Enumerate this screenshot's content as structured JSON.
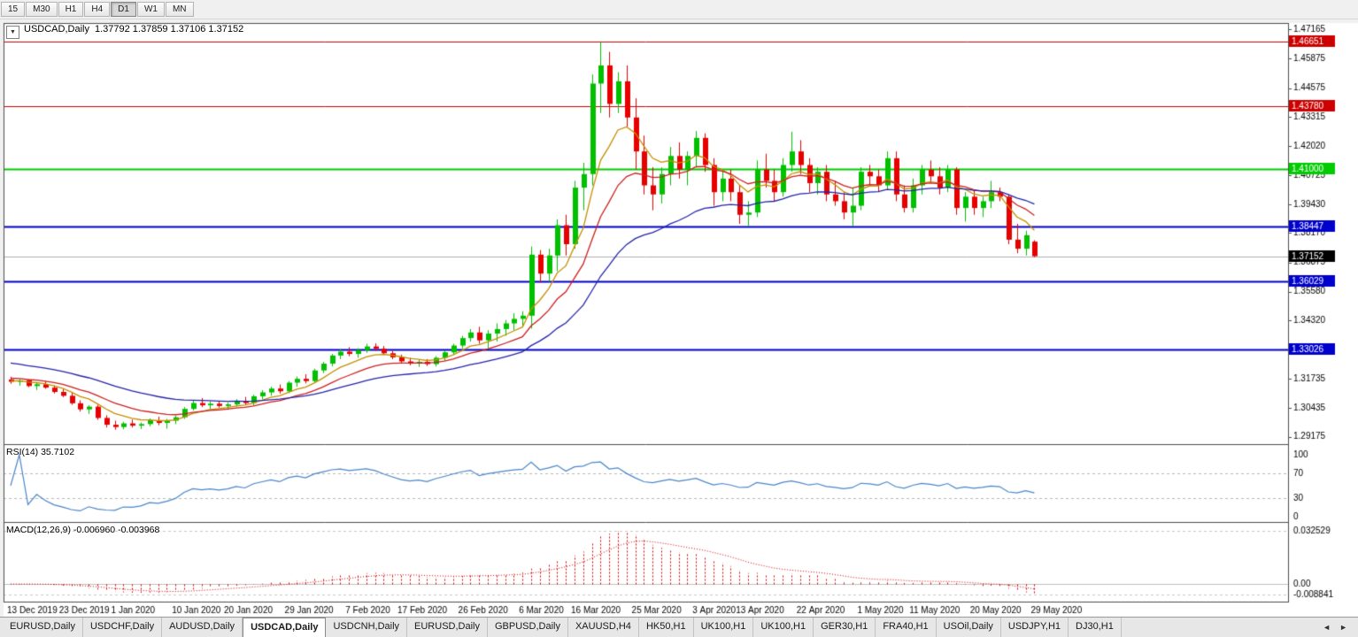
{
  "toolbar": {
    "timeframes": [
      {
        "label": "15",
        "active": false
      },
      {
        "label": "M30",
        "active": false
      },
      {
        "label": "H1",
        "active": false
      },
      {
        "label": "H4",
        "active": false
      },
      {
        "label": "D1",
        "active": true
      },
      {
        "label": "W1",
        "active": false
      },
      {
        "label": "MN",
        "active": false
      }
    ]
  },
  "chart": {
    "dropdown_icon": "▼",
    "title": "USDCAD,Daily",
    "ohlc": "1.37792 1.37859 1.37106 1.37152"
  },
  "panels": {
    "rsi_label": "RSI(14) 35.7102",
    "macd_label": "MACD(12,26,9) -0.006960 -0.003968"
  },
  "tabs": {
    "nav_left": "◄",
    "nav_right": "►",
    "items": [
      {
        "label": "EURUSD,Daily",
        "active": false
      },
      {
        "label": "USDCHF,Daily",
        "active": false
      },
      {
        "label": "AUDUSD,Daily",
        "active": false
      },
      {
        "label": "USDCAD,Daily",
        "active": true
      },
      {
        "label": "USDCNH,Daily",
        "active": false
      },
      {
        "label": "EURUSD,Daily",
        "active": false
      },
      {
        "label": "GBPUSD,Daily",
        "active": false
      },
      {
        "label": "XAUUSD,H4",
        "active": false
      },
      {
        "label": "HK50,H1",
        "active": false
      },
      {
        "label": "UK100,H1",
        "active": false
      },
      {
        "label": "UK100,H1",
        "active": false
      },
      {
        "label": "GER30,H1",
        "active": false
      },
      {
        "label": "FRA40,H1",
        "active": false
      },
      {
        "label": "USOil,Daily",
        "active": false
      },
      {
        "label": "USDJPY,H1",
        "active": false
      },
      {
        "label": "DJ30,H1",
        "active": false
      }
    ]
  },
  "chart_data": {
    "type": "candlestick",
    "title": "USDCAD,Daily",
    "symbol": "USDCAD",
    "timeframe": "Daily",
    "last_ohlc": {
      "open": 1.37792,
      "high": 1.37859,
      "low": 1.37106,
      "close": 1.37152
    },
    "colors": {
      "up": "#00c000",
      "down": "#e60000",
      "rsi": "#4a86c8",
      "macd": "#d40000",
      "current_line": "#b0b0b0",
      "current_badge": "#000000"
    },
    "y_axis": {
      "max": 1.473,
      "min": 1.29,
      "ticks": [
        1.47165,
        1.45875,
        1.44575,
        1.43315,
        1.4202,
        1.40725,
        1.3943,
        1.3817,
        1.36875,
        1.3558,
        1.3432,
        1.3303,
        1.31735,
        1.30435,
        1.29175
      ]
    },
    "hlines": [
      {
        "price": 1.46651,
        "label": "1.46651",
        "color": "#cc0000",
        "width": 1
      },
      {
        "price": 1.4378,
        "label": "1.43780",
        "color": "#cc0000",
        "width": 1
      },
      {
        "price": 1.41,
        "label": "1.41000",
        "color": "#00cc00",
        "width": 2
      },
      {
        "price": 1.38447,
        "label": "1.38447",
        "color": "#0000cc",
        "width": 2
      },
      {
        "price": 1.36029,
        "label": "1.36029",
        "color": "#0000cc",
        "width": 2
      },
      {
        "price": 1.33026,
        "label": "1.33026",
        "color": "#0000cc",
        "width": 2
      }
    ],
    "current_price": {
      "value": 1.37152,
      "label": "1.37152"
    },
    "moving_averages": [
      {
        "period": 7,
        "color": "#c49000",
        "seed": 1.3165
      },
      {
        "period": 14,
        "color": "#cc2020",
        "seed": 1.3178
      },
      {
        "period": 30,
        "color": "#2424aa",
        "seed": 1.3248
      }
    ],
    "indicators": {
      "rsi": {
        "period": 14,
        "value": 35.7102,
        "levels": [
          70,
          30
        ],
        "axis_labels": [
          "100",
          "70",
          "30",
          "0"
        ]
      },
      "macd": {
        "fast": 12,
        "slow": 26,
        "signal": 9,
        "main_value": -0.00696,
        "signal_value": -0.003968,
        "axis_labels": [
          "0.032529",
          "0.00",
          "-0.008841"
        ]
      }
    },
    "x_ticks": [
      {
        "index": 0,
        "label": "13 Dec 2019"
      },
      {
        "index": 6,
        "label": "23 Dec 2019"
      },
      {
        "index": 12,
        "label": "1 Jan 2020"
      },
      {
        "index": 19,
        "label": "10 Jan 2020"
      },
      {
        "index": 25,
        "label": "20 Jan 2020"
      },
      {
        "index": 32,
        "label": "29 Jan 2020"
      },
      {
        "index": 39,
        "label": "7 Feb 2020"
      },
      {
        "index": 45,
        "label": "17 Feb 2020"
      },
      {
        "index": 52,
        "label": "26 Feb 2020"
      },
      {
        "index": 59,
        "label": "6 Mar 2020"
      },
      {
        "index": 65,
        "label": "16 Mar 2020"
      },
      {
        "index": 72,
        "label": "25 Mar 2020"
      },
      {
        "index": 79,
        "label": "3 Apr 2020"
      },
      {
        "index": 84,
        "label": "13 Apr 2020"
      },
      {
        "index": 91,
        "label": "22 Apr 2020"
      },
      {
        "index": 98,
        "label": "1 May 2020"
      },
      {
        "index": 104,
        "label": "11 May 2020"
      },
      {
        "index": 111,
        "label": "20 May 2020"
      },
      {
        "index": 118,
        "label": "29 May 2020"
      }
    ],
    "candles": [
      [
        1.317,
        1.3182,
        1.3151,
        1.316
      ],
      [
        1.316,
        1.3173,
        1.3143,
        1.3166
      ],
      [
        1.3166,
        1.3171,
        1.3136,
        1.3141
      ],
      [
        1.3141,
        1.3156,
        1.3124,
        1.3149
      ],
      [
        1.3149,
        1.3161,
        1.3129,
        1.3134
      ],
      [
        1.3134,
        1.3144,
        1.3108,
        1.3115
      ],
      [
        1.3115,
        1.3128,
        1.3092,
        1.3098
      ],
      [
        1.3098,
        1.3112,
        1.3058,
        1.3065
      ],
      [
        1.3065,
        1.3078,
        1.3028,
        1.3038
      ],
      [
        1.3038,
        1.3056,
        1.3018,
        1.305
      ],
      [
        1.305,
        1.3058,
        1.2992,
        1.3
      ],
      [
        1.3,
        1.3012,
        1.2958,
        1.297
      ],
      [
        1.297,
        1.2988,
        1.2948,
        1.296
      ],
      [
        1.296,
        1.2983,
        1.295,
        1.2976
      ],
      [
        1.2976,
        1.2993,
        1.2958,
        1.2966
      ],
      [
        1.2966,
        1.298,
        1.2951,
        1.2973
      ],
      [
        1.2973,
        1.2998,
        1.2963,
        1.299
      ],
      [
        1.299,
        1.3006,
        1.2968,
        1.2978
      ],
      [
        1.2978,
        1.2996,
        1.2953,
        1.2988
      ],
      [
        1.2988,
        1.301,
        1.2973,
        1.3003
      ],
      [
        1.3003,
        1.3048,
        1.2996,
        1.304
      ],
      [
        1.304,
        1.3078,
        1.3033,
        1.3066
      ],
      [
        1.3066,
        1.3088,
        1.3048,
        1.3056
      ],
      [
        1.3056,
        1.3073,
        1.3038,
        1.3063
      ],
      [
        1.3063,
        1.3076,
        1.3046,
        1.3053
      ],
      [
        1.3053,
        1.3068,
        1.3036,
        1.306
      ],
      [
        1.306,
        1.3083,
        1.305,
        1.3076
      ],
      [
        1.3076,
        1.3093,
        1.3058,
        1.3066
      ],
      [
        1.3066,
        1.3103,
        1.3056,
        1.3096
      ],
      [
        1.3096,
        1.3123,
        1.3083,
        1.3113
      ],
      [
        1.3113,
        1.3138,
        1.3098,
        1.313
      ],
      [
        1.313,
        1.3148,
        1.3108,
        1.3118
      ],
      [
        1.3118,
        1.3163,
        1.311,
        1.3156
      ],
      [
        1.3156,
        1.3183,
        1.3138,
        1.3173
      ],
      [
        1.3173,
        1.3193,
        1.3153,
        1.3163
      ],
      [
        1.3163,
        1.3218,
        1.3156,
        1.321
      ],
      [
        1.321,
        1.3248,
        1.3198,
        1.324
      ],
      [
        1.324,
        1.3283,
        1.3228,
        1.3276
      ],
      [
        1.3276,
        1.3303,
        1.326,
        1.3293
      ],
      [
        1.3293,
        1.3313,
        1.3273,
        1.3283
      ],
      [
        1.3283,
        1.3308,
        1.3266,
        1.33
      ],
      [
        1.33,
        1.3328,
        1.3288,
        1.3316
      ],
      [
        1.3316,
        1.333,
        1.3296,
        1.3306
      ],
      [
        1.3306,
        1.3318,
        1.3278,
        1.3286
      ],
      [
        1.3286,
        1.3296,
        1.326,
        1.3268
      ],
      [
        1.3268,
        1.328,
        1.3243,
        1.325
      ],
      [
        1.325,
        1.3266,
        1.3233,
        1.324
      ],
      [
        1.324,
        1.3256,
        1.3226,
        1.3248
      ],
      [
        1.3248,
        1.326,
        1.323,
        1.3238
      ],
      [
        1.3238,
        1.3273,
        1.3228,
        1.3266
      ],
      [
        1.3266,
        1.3298,
        1.3253,
        1.329
      ],
      [
        1.329,
        1.3328,
        1.328,
        1.332
      ],
      [
        1.332,
        1.3363,
        1.3308,
        1.3353
      ],
      [
        1.3353,
        1.3393,
        1.3338,
        1.3378
      ],
      [
        1.3378,
        1.3403,
        1.3328,
        1.3343
      ],
      [
        1.3343,
        1.3388,
        1.3308,
        1.3373
      ],
      [
        1.3373,
        1.3418,
        1.3338,
        1.3393
      ],
      [
        1.3393,
        1.3433,
        1.3363,
        1.3418
      ],
      [
        1.3418,
        1.3463,
        1.3388,
        1.3438
      ],
      [
        1.3438,
        1.3472,
        1.3405,
        1.3452
      ],
      [
        1.3452,
        1.3758,
        1.3395,
        1.3722
      ],
      [
        1.3722,
        1.3742,
        1.3598,
        1.3638
      ],
      [
        1.3638,
        1.3748,
        1.3602,
        1.3718
      ],
      [
        1.3718,
        1.3878,
        1.3648,
        1.3852
      ],
      [
        1.3852,
        1.3898,
        1.3718,
        1.3768
      ],
      [
        1.3768,
        1.4048,
        1.3748,
        1.4018
      ],
      [
        1.4018,
        1.4128,
        1.3918,
        1.4078
      ],
      [
        1.4078,
        1.4518,
        1.4028,
        1.4478
      ],
      [
        1.4478,
        1.46651,
        1.4348,
        1.4558
      ],
      [
        1.4558,
        1.4618,
        1.4328,
        1.4388
      ],
      [
        1.4388,
        1.4528,
        1.4348,
        1.4488
      ],
      [
        1.4488,
        1.4558,
        1.4288,
        1.4328
      ],
      [
        1.4328,
        1.4413,
        1.4098,
        1.4178
      ],
      [
        1.4178,
        1.4248,
        1.3988,
        1.4028
      ],
      [
        1.4028,
        1.4108,
        1.3918,
        1.3988
      ],
      [
        1.3988,
        1.4108,
        1.3948,
        1.4078
      ],
      [
        1.4078,
        1.4198,
        1.4028,
        1.4158
      ],
      [
        1.4158,
        1.4218,
        1.4058,
        1.4098
      ],
      [
        1.4098,
        1.4178,
        1.4028,
        1.4158
      ],
      [
        1.4158,
        1.4268,
        1.4108,
        1.4238
      ],
      [
        1.4238,
        1.4258,
        1.4088,
        1.4118
      ],
      [
        1.4118,
        1.4148,
        1.3938,
        1.3998
      ],
      [
        1.3998,
        1.4098,
        1.3958,
        1.4058
      ],
      [
        1.4058,
        1.4098,
        1.3958,
        1.3998
      ],
      [
        1.3998,
        1.4028,
        1.3858,
        1.3898
      ],
      [
        1.3898,
        1.3958,
        1.3848,
        1.3908
      ],
      [
        1.3908,
        1.4138,
        1.3888,
        1.4098
      ],
      [
        1.4098,
        1.4168,
        1.4018,
        1.4048
      ],
      [
        1.4048,
        1.4098,
        1.3958,
        1.3998
      ],
      [
        1.3998,
        1.4148,
        1.3978,
        1.4118
      ],
      [
        1.4118,
        1.4265,
        1.4088,
        1.4178
      ],
      [
        1.4178,
        1.4228,
        1.4078,
        1.4118
      ],
      [
        1.4118,
        1.4148,
        1.3998,
        1.4038
      ],
      [
        1.4038,
        1.4108,
        1.3988,
        1.4088
      ],
      [
        1.4088,
        1.4118,
        1.3958,
        1.3988
      ],
      [
        1.3988,
        1.4048,
        1.3938,
        1.3958
      ],
      [
        1.3958,
        1.3998,
        1.3878,
        1.3908
      ],
      [
        1.3908,
        1.4018,
        1.3848,
        1.3938
      ],
      [
        1.3938,
        1.4108,
        1.3918,
        1.4088
      ],
      [
        1.4088,
        1.4118,
        1.4028,
        1.4068
      ],
      [
        1.4068,
        1.4098,
        1.3998,
        1.4028
      ],
      [
        1.4028,
        1.4178,
        1.4008,
        1.4148
      ],
      [
        1.4148,
        1.4178,
        1.3958,
        1.3988
      ],
      [
        1.3988,
        1.4028,
        1.3908,
        1.3928
      ],
      [
        1.3928,
        1.4058,
        1.3908,
        1.4028
      ],
      [
        1.4028,
        1.4118,
        1.3988,
        1.4098
      ],
      [
        1.4098,
        1.4138,
        1.4038,
        1.4068
      ],
      [
        1.4068,
        1.4108,
        1.3988,
        1.4018
      ],
      [
        1.4018,
        1.4118,
        1.3998,
        1.4098
      ],
      [
        1.4098,
        1.4108,
        1.3898,
        1.3928
      ],
      [
        1.3928,
        1.3998,
        1.3868,
        1.3978
      ],
      [
        1.3978,
        1.4008,
        1.3898,
        1.3928
      ],
      [
        1.3928,
        1.3978,
        1.3888,
        1.3958
      ],
      [
        1.3958,
        1.4048,
        1.3928,
        1.3998
      ],
      [
        1.3998,
        1.4018,
        1.3958,
        1.3978
      ],
      [
        1.3978,
        1.3988,
        1.3768,
        1.3788
      ],
      [
        1.3788,
        1.3858,
        1.3728,
        1.3748
      ],
      [
        1.3748,
        1.3828,
        1.3718,
        1.3808
      ],
      [
        1.37792,
        1.37859,
        1.37106,
        1.37152
      ]
    ]
  }
}
